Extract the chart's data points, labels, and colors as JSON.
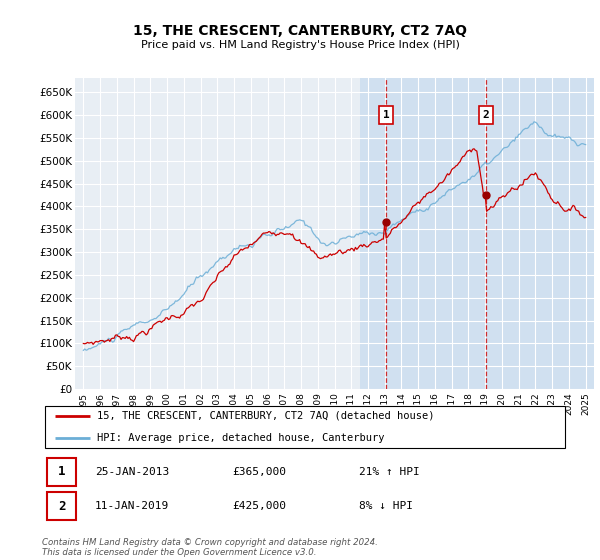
{
  "title": "15, THE CRESCENT, CANTERBURY, CT2 7AQ",
  "subtitle": "Price paid vs. HM Land Registry's House Price Index (HPI)",
  "ylabel_ticks": [
    "£0",
    "£50K",
    "£100K",
    "£150K",
    "£200K",
    "£250K",
    "£300K",
    "£350K",
    "£400K",
    "£450K",
    "£500K",
    "£550K",
    "£600K",
    "£650K"
  ],
  "ytick_values": [
    0,
    50000,
    100000,
    150000,
    200000,
    250000,
    300000,
    350000,
    400000,
    450000,
    500000,
    550000,
    600000,
    650000
  ],
  "hpi_line_color": "#6baed6",
  "price_line_color": "#cc0000",
  "vline_color": "#cc0000",
  "marker1_date": 2013.07,
  "marker2_date": 2019.04,
  "marker1_price": 365000,
  "marker2_price": 425000,
  "legend_property": "15, THE CRESCENT, CANTERBURY, CT2 7AQ (detached house)",
  "legend_hpi": "HPI: Average price, detached house, Canterbury",
  "annotation1_date": "25-JAN-2013",
  "annotation1_price": "£365,000",
  "annotation1_hpi": "21% ↑ HPI",
  "annotation2_date": "11-JAN-2019",
  "annotation2_price": "£425,000",
  "annotation2_hpi": "8% ↓ HPI",
  "footnote": "Contains HM Land Registry data © Crown copyright and database right 2024.\nThis data is licensed under the Open Government Licence v3.0.",
  "background_color": "#ffffff",
  "plot_bg_color": "#e8eef4",
  "grid_color": "#ffffff",
  "shaded_region_color": "#d0e0f0",
  "shaded_x_start": 2011.5,
  "shaded_x_end": 2025.5,
  "ylim": [
    0,
    680000
  ],
  "xlim_start": 1994.5,
  "xlim_end": 2025.5
}
